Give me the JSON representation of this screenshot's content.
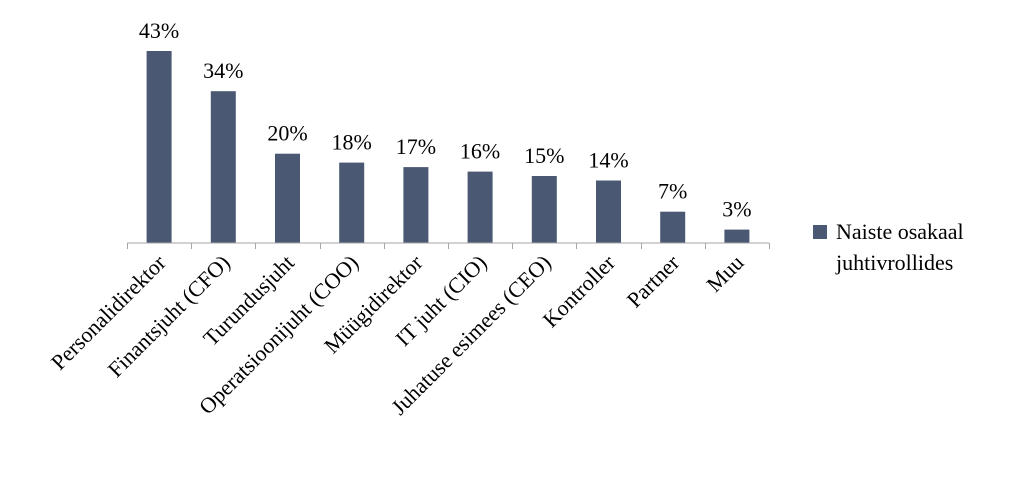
{
  "chart_data": {
    "type": "bar",
    "categories": [
      "Personalidirektor",
      "Finantsjuht (CFO)",
      "Turundusjuht",
      "Operatsioonijuht (COO)",
      "Müügidirektor",
      "IT juht (CIO)",
      "Juhatuse esimees (CEO)",
      "Kontroller",
      "Partner",
      "Muu"
    ],
    "series": [
      {
        "name": "Naiste osakaal juhtivrollides",
        "values": [
          43,
          34,
          20,
          18,
          17,
          16,
          15,
          14,
          7,
          3
        ],
        "data_labels": [
          "43%",
          "34%",
          "20%",
          "18%",
          "17%",
          "16%",
          "15%",
          "14%",
          "7%",
          "3%"
        ]
      }
    ],
    "title": "",
    "xlabel": "",
    "ylabel": "",
    "ylim": [
      0,
      43
    ],
    "grid": false,
    "legend_position": "right",
    "colors": {
      "bar": "#4a5873",
      "axis": "#a6a6a6"
    }
  }
}
